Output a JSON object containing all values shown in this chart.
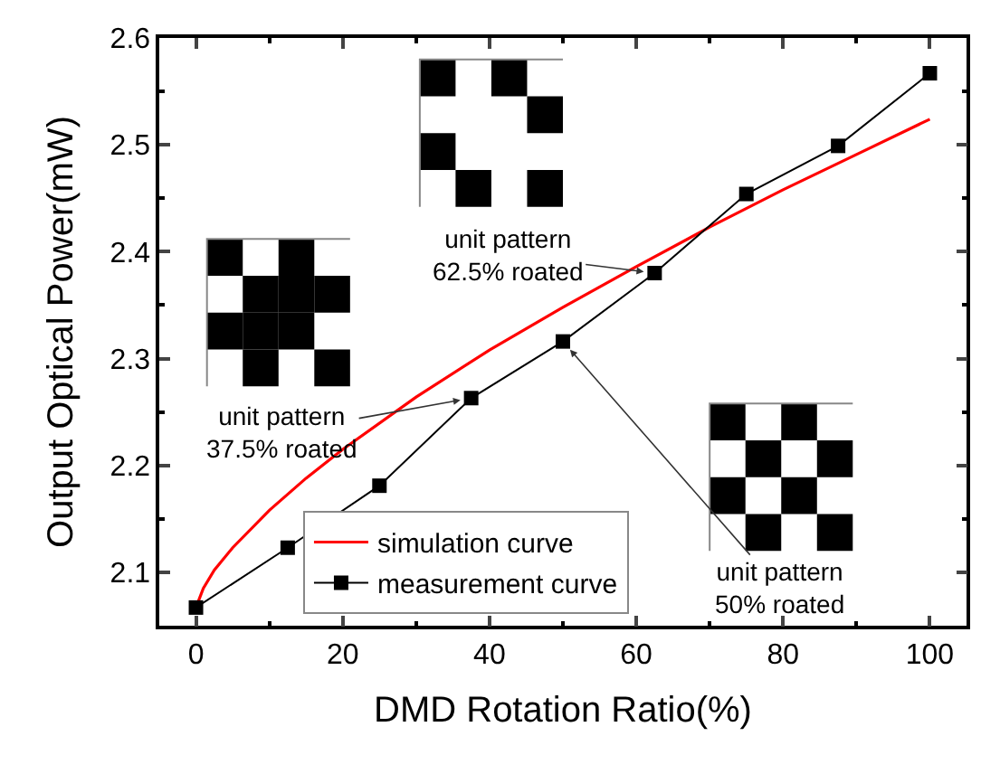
{
  "chart_data": {
    "type": "line",
    "xlabel": "DMD Rotation Ratio(%)",
    "ylabel": "Output Optical Power(mW)",
    "xlim": [
      -5,
      105
    ],
    "xticks": [
      0,
      20,
      40,
      60,
      80,
      100
    ],
    "ylim": [
      2.05,
      2.6
    ],
    "yticks": [
      2.1,
      2.2,
      2.3,
      2.4,
      2.5,
      2.6
    ],
    "grid": false,
    "legend": "bottom",
    "series": [
      {
        "name": "simulation curve",
        "color": "#ff0000",
        "marker": "none",
        "x": [
          0,
          1,
          2.5,
          5,
          10,
          15,
          20,
          30,
          40,
          50,
          60,
          70,
          80,
          90,
          100
        ],
        "values": [
          2.067,
          2.085,
          2.102,
          2.123,
          2.158,
          2.188,
          2.215,
          2.264,
          2.308,
          2.348,
          2.386,
          2.423,
          2.458,
          2.491,
          2.524
        ]
      },
      {
        "name": "measurement curve",
        "color": "#000000",
        "marker": "square",
        "x": [
          0,
          12.5,
          25,
          37.5,
          50,
          62.5,
          75,
          87.5,
          100
        ],
        "values": [
          2.067,
          2.123,
          2.181,
          2.263,
          2.316,
          2.38,
          2.454,
          2.499,
          2.567
        ]
      }
    ],
    "annotations": [
      {
        "text": "unit pattern\n62.5% roated",
        "x": 62.5,
        "y": 2.38
      },
      {
        "text": "unit pattern\n37.5% roated",
        "x": 37.5,
        "y": 2.263
      },
      {
        "text": "unit pattern\n50% roated",
        "x": 50,
        "y": 2.316
      }
    ]
  }
}
